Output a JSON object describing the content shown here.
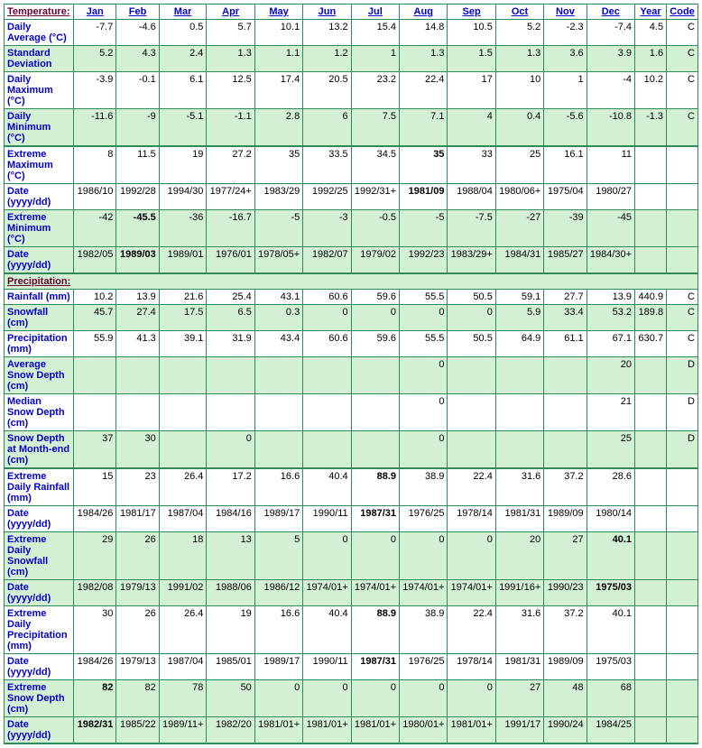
{
  "columns": [
    "Jan",
    "Feb",
    "Mar",
    "Apr",
    "May",
    "Jun",
    "Jul",
    "Aug",
    "Sep",
    "Oct",
    "Nov",
    "Dec",
    "Year",
    "Code"
  ],
  "sections": {
    "temperature": "Temperature:",
    "precipitation": "Precipitation:"
  },
  "rows": [
    {
      "id": "daily-avg",
      "label": "Daily Average (°C)",
      "cls": "white",
      "section": "temperature",
      "inline_header": true,
      "vals": [
        "-7.7",
        "-4.6",
        "0.5",
        "5.7",
        "10.1",
        "13.2",
        "15.4",
        "14.8",
        "10.5",
        "5.2",
        "-2.3",
        "-7.4",
        "4.5",
        "C"
      ]
    },
    {
      "id": "std-dev",
      "label": "Standard Deviation",
      "cls": "green",
      "vals": [
        "5.2",
        "4.3",
        "2.4",
        "1.3",
        "1.1",
        "1.2",
        "1",
        "1.3",
        "1.5",
        "1.3",
        "3.6",
        "3.9",
        "1.6",
        "C"
      ]
    },
    {
      "id": "daily-max",
      "label": "Daily Maximum (°C)",
      "cls": "white",
      "vals": [
        "-3.9",
        "-0.1",
        "6.1",
        "12.5",
        "17.4",
        "20.5",
        "23.2",
        "22.4",
        "17",
        "10",
        "1",
        "-4",
        "10.2",
        "C"
      ]
    },
    {
      "id": "daily-min",
      "label": "Daily Minimum (°C)",
      "cls": "green",
      "heavy_bottom": true,
      "vals": [
        "-11.6",
        "-9",
        "-5.1",
        "-1.1",
        "2.8",
        "6",
        "7.5",
        "7.1",
        "4",
        "0.4",
        "-5.6",
        "-10.8",
        "-1.3",
        "C"
      ]
    },
    {
      "id": "ext-max",
      "label": "Extreme Maximum (°C)",
      "cls": "white",
      "heavy_top": true,
      "vals": [
        "8",
        "11.5",
        "19",
        "27.2",
        "35",
        "33.5",
        "34.5",
        "35",
        "33",
        "25",
        "16.1",
        "11",
        "",
        ""
      ],
      "bold": [
        7
      ]
    },
    {
      "id": "ext-max-date",
      "label": "Date (yyyy/dd)",
      "cls": "white",
      "vals": [
        "1986/10",
        "1992/28",
        "1994/30",
        "1977/24+",
        "1983/29",
        "1992/25",
        "1992/31+",
        "1981/09",
        "1988/04",
        "1980/06+",
        "1975/04",
        "1980/27",
        "",
        ""
      ],
      "bold": [
        7
      ]
    },
    {
      "id": "ext-min",
      "label": "Extreme Minimum (°C)",
      "cls": "green",
      "vals": [
        "-42",
        "-45.5",
        "-36",
        "-16.7",
        "-5",
        "-3",
        "-0.5",
        "-5",
        "-7.5",
        "-27",
        "-39",
        "-45",
        "",
        ""
      ],
      "bold": [
        1
      ]
    },
    {
      "id": "ext-min-date",
      "label": "Date (yyyy/dd)",
      "cls": "green",
      "heavy_bottom": true,
      "vals": [
        "1982/05",
        "1989/03",
        "1989/01",
        "1976/01",
        "1978/05+",
        "1982/07",
        "1979/02",
        "1992/23",
        "1983/29+",
        "1984/31",
        "1985/27",
        "1984/30+",
        "",
        ""
      ],
      "bold": [
        1
      ]
    },
    {
      "id": "precip-head",
      "section_row": "precipitation"
    },
    {
      "id": "rainfall",
      "label": "Rainfall (mm)",
      "cls": "white",
      "vals": [
        "10.2",
        "13.9",
        "21.6",
        "25.4",
        "43.1",
        "60.6",
        "59.6",
        "55.5",
        "50.5",
        "59.1",
        "27.7",
        "13.9",
        "440.9",
        "C"
      ]
    },
    {
      "id": "snowfall",
      "label": "Snowfall (cm)",
      "cls": "green",
      "vals": [
        "45.7",
        "27.4",
        "17.5",
        "6.5",
        "0.3",
        "0",
        "0",
        "0",
        "0",
        "5.9",
        "33.4",
        "53.2",
        "189.8",
        "C"
      ]
    },
    {
      "id": "precip",
      "label": "Precipitation (mm)",
      "cls": "white",
      "vals": [
        "55.9",
        "41.3",
        "39.1",
        "31.9",
        "43.4",
        "60.6",
        "59.6",
        "55.5",
        "50.5",
        "64.9",
        "61.1",
        "67.1",
        "630.7",
        "C"
      ]
    },
    {
      "id": "avg-snow-depth",
      "label": "Average Snow Depth (cm)",
      "cls": "green",
      "vals": [
        "",
        "",
        "",
        "",
        "",
        "",
        "",
        "0",
        "",
        "",
        "",
        "20",
        "",
        "D"
      ]
    },
    {
      "id": "median-snow-depth",
      "label": "Median Snow Depth (cm)",
      "cls": "white",
      "vals": [
        "",
        "",
        "",
        "",
        "",
        "",
        "",
        "0",
        "",
        "",
        "",
        "21",
        "",
        "D"
      ]
    },
    {
      "id": "snow-depth-month-end",
      "label": "Snow Depth at Month-end (cm)",
      "cls": "green",
      "heavy_bottom": true,
      "vals": [
        "37",
        "30",
        "",
        "0",
        "",
        "",
        "",
        "0",
        "",
        "",
        "",
        "25",
        "",
        "D"
      ]
    },
    {
      "id": "ext-daily-rain",
      "label": "Extreme Daily Rainfall (mm)",
      "cls": "white",
      "heavy_top": true,
      "vals": [
        "15",
        "23",
        "26.4",
        "17.2",
        "16.6",
        "40.4",
        "88.9",
        "38.9",
        "22.4",
        "31.6",
        "37.2",
        "28.6",
        "",
        ""
      ],
      "bold": [
        6
      ]
    },
    {
      "id": "ext-daily-rain-date",
      "label": "Date (yyyy/dd)",
      "cls": "white",
      "vals": [
        "1984/26",
        "1981/17",
        "1987/04",
        "1984/16",
        "1989/17",
        "1990/11",
        "1987/31",
        "1976/25",
        "1978/14",
        "1981/31",
        "1989/09",
        "1980/14",
        "",
        ""
      ],
      "bold": [
        6
      ]
    },
    {
      "id": "ext-daily-snow",
      "label": "Extreme Daily Snowfall (cm)",
      "cls": "green",
      "vals": [
        "29",
        "26",
        "18",
        "13",
        "5",
        "0",
        "0",
        "0",
        "0",
        "20",
        "27",
        "40.1",
        "",
        ""
      ],
      "bold": [
        11
      ]
    },
    {
      "id": "ext-daily-snow-date",
      "label": "Date (yyyy/dd)",
      "cls": "green",
      "vals": [
        "1982/08",
        "1979/13",
        "1991/02",
        "1988/06",
        "1986/12",
        "1974/01+",
        "1974/01+",
        "1974/01+",
        "1974/01+",
        "1991/16+",
        "1990/23",
        "1975/03",
        "",
        ""
      ],
      "bold": [
        11
      ]
    },
    {
      "id": "ext-daily-precip",
      "label": "Extreme Daily Precipitation (mm)",
      "cls": "white",
      "vals": [
        "30",
        "26",
        "26.4",
        "19",
        "16.6",
        "40.4",
        "88.9",
        "38.9",
        "22.4",
        "31.6",
        "37.2",
        "40.1",
        "",
        ""
      ],
      "bold": [
        6
      ]
    },
    {
      "id": "ext-daily-precip-date",
      "label": "Date (yyyy/dd)",
      "cls": "white",
      "vals": [
        "1984/26",
        "1979/13",
        "1987/04",
        "1985/01",
        "1989/17",
        "1990/11",
        "1987/31",
        "1976/25",
        "1978/14",
        "1981/31",
        "1989/09",
        "1975/03",
        "",
        ""
      ],
      "bold": [
        6
      ]
    },
    {
      "id": "ext-snow-depth",
      "label": "Extreme Snow Depth (cm)",
      "cls": "green",
      "vals": [
        "82",
        "82",
        "78",
        "50",
        "0",
        "0",
        "0",
        "0",
        "0",
        "27",
        "48",
        "68",
        "",
        ""
      ],
      "bold": [
        0
      ]
    },
    {
      "id": "ext-snow-depth-date",
      "label": "Date (yyyy/dd)",
      "cls": "green",
      "heavy_bottom": true,
      "vals": [
        "1982/31",
        "1985/22",
        "1989/11+",
        "1982/20",
        "1981/01+",
        "1981/01+",
        "1981/01+",
        "1980/01+",
        "1981/01+",
        "1991/17",
        "1990/24",
        "1984/25",
        "",
        ""
      ],
      "bold": [
        0
      ]
    }
  ]
}
